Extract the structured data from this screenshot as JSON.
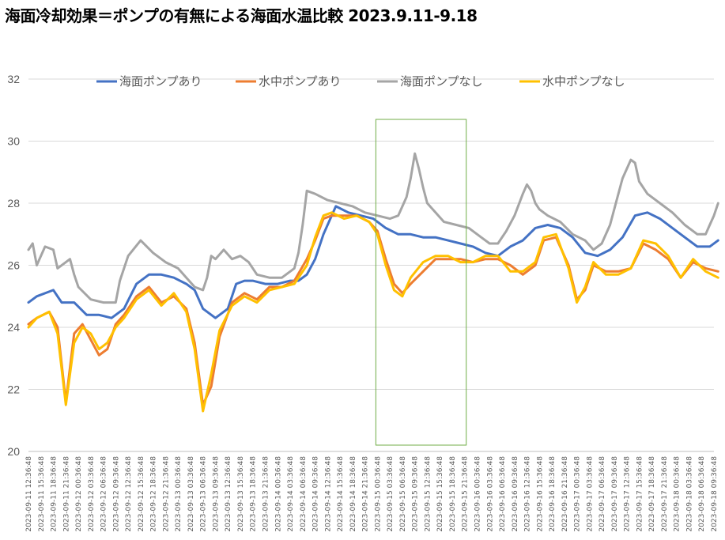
{
  "title": "海面冷却効果＝ポンプの有無による海面水温比較  2023.9.11-9.18",
  "chart_data": {
    "type": "line",
    "title": "海面冷却効果＝ポンプの有無による海面水温比較  2023.9.11-9.18",
    "xlabel": "",
    "ylabel": "",
    "ylim": [
      20,
      32
    ],
    "yticks": [
      20,
      22,
      24,
      26,
      28,
      30,
      32
    ],
    "grid": true,
    "legend_position": "top",
    "highlight_box": {
      "x_from": "2023-09-15 00:36:48",
      "x_to": "2023-09-15 21:36:48",
      "color": "#70ad47"
    },
    "x_tick_labels": [
      "2023-09-11 12:36:48",
      "2023-09-11 15:36:48",
      "2023-09-11 18:36:48",
      "2023-09-11 21:36:48",
      "2023-09-12 00:36:48",
      "2023-09-12 03:36:48",
      "2023-09-12 06:36:48",
      "2023-09-12 09:36:48",
      "2023-09-12 12:36:48",
      "2023-09-12 15:36:48",
      "2023-09-12 18:36:48",
      "2023-09-12 21:36:48",
      "2023-09-13 00:36:48",
      "2023-09-13 03:36:48",
      "2023-09-13 06:36:48",
      "2023-09-13 09:36:48",
      "2023-09-13 12:36:48",
      "2023-09-13 15:36:48",
      "2023-09-13 18:36:48",
      "2023-09-13 21:36:48",
      "2023-09-14 00:36:48",
      "2023-09-14 03:36:48",
      "2023-09-14 06:36:48",
      "2023-09-14 09:36:48",
      "2023-09-14 12:36:48",
      "2023-09-14 15:36:48",
      "2023-09-14 18:36:48",
      "2023-09-14 21:36:48",
      "2023-09-15 00:36:48",
      "2023-09-15 03:36:48",
      "2023-09-15 06:36:48",
      "2023-09-15 09:36:48",
      "2023-09-15 12:36:48",
      "2023-09-15 15:36:48",
      "2023-09-15 18:36:48",
      "2023-09-15 21:36:48",
      "2023-09-16 00:36:48",
      "2023-09-16 03:36:48",
      "2023-09-16 06:36:48",
      "2023-09-16 09:36:48",
      "2023-09-16 12:36:48",
      "2023-09-16 15:36:48",
      "2023-09-16 18:36:48",
      "2023-09-16 21:36:48",
      "2023-09-17 00:36:48",
      "2023-09-17 03:36:48",
      "2023-09-17 06:36:48",
      "2023-09-17 09:36:48",
      "2023-09-17 12:36:48",
      "2023-09-17 15:36:48",
      "2023-09-17 18:36:48",
      "2023-09-17 21:36:48",
      "2023-09-18 00:36:48",
      "2023-09-18 03:36:48",
      "2023-09-18 06:36:48",
      "2023-09-18 09:36:48"
    ],
    "series": [
      {
        "name": "海面ポンプあり",
        "color": "#4472c4",
        "x": [
          "2023-09-11 12:36:48",
          "2023-09-11 14:36:48",
          "2023-09-11 18:36:48",
          "2023-09-11 20:36:48",
          "2023-09-11 23:36:48",
          "2023-09-12 02:36:48",
          "2023-09-12 05:36:48",
          "2023-09-12 08:36:48",
          "2023-09-12 11:36:48",
          "2023-09-12 14:36:48",
          "2023-09-12 17:36:48",
          "2023-09-12 20:36:48",
          "2023-09-12 23:36:48",
          "2023-09-13 02:36:48",
          "2023-09-13 04:36:48",
          "2023-09-13 06:36:48",
          "2023-09-13 09:36:48",
          "2023-09-13 12:36:48",
          "2023-09-13 14:36:48",
          "2023-09-13 16:36:48",
          "2023-09-13 18:36:48",
          "2023-09-13 21:36:48",
          "2023-09-14 00:36:48",
          "2023-09-14 03:36:48",
          "2023-09-14 05:36:48",
          "2023-09-14 07:36:48",
          "2023-09-14 09:36:48",
          "2023-09-14 11:36:48",
          "2023-09-14 14:36:48",
          "2023-09-14 17:36:48",
          "2023-09-14 20:36:48",
          "2023-09-14 23:36:48",
          "2023-09-15 02:36:48",
          "2023-09-15 05:36:48",
          "2023-09-15 08:36:48",
          "2023-09-15 11:36:48",
          "2023-09-15 14:36:48",
          "2023-09-15 17:36:48",
          "2023-09-15 20:36:48",
          "2023-09-15 23:36:48",
          "2023-09-16 02:36:48",
          "2023-09-16 05:36:48",
          "2023-09-16 08:36:48",
          "2023-09-16 11:36:48",
          "2023-09-16 14:36:48",
          "2023-09-16 17:36:48",
          "2023-09-16 20:36:48",
          "2023-09-16 23:36:48",
          "2023-09-17 02:36:48",
          "2023-09-17 05:36:48",
          "2023-09-17 08:36:48",
          "2023-09-17 11:36:48",
          "2023-09-17 14:36:48",
          "2023-09-17 17:36:48",
          "2023-09-17 20:36:48",
          "2023-09-17 23:36:48",
          "2023-09-18 02:36:48",
          "2023-09-18 05:36:48",
          "2023-09-18 08:36:48",
          "2023-09-18 10:36:48"
        ],
        "values": [
          24.8,
          25.0,
          25.2,
          24.8,
          24.8,
          24.4,
          24.4,
          24.3,
          24.6,
          25.4,
          25.7,
          25.7,
          25.6,
          25.4,
          25.2,
          24.6,
          24.3,
          24.6,
          25.4,
          25.5,
          25.5,
          25.4,
          25.4,
          25.5,
          25.5,
          25.7,
          26.2,
          27.0,
          27.9,
          27.7,
          27.6,
          27.5,
          27.2,
          27.0,
          27.0,
          26.9,
          26.9,
          26.8,
          26.7,
          26.6,
          26.4,
          26.3,
          26.6,
          26.8,
          27.2,
          27.3,
          27.2,
          26.9,
          26.4,
          26.3,
          26.5,
          26.9,
          27.6,
          27.7,
          27.5,
          27.2,
          26.9,
          26.6,
          26.6,
          26.8
        ]
      },
      {
        "name": "水中ポンプあり",
        "color": "#ed7d31",
        "x": [
          "2023-09-11 12:36:48",
          "2023-09-11 14:36:48",
          "2023-09-11 17:36:48",
          "2023-09-11 19:36:48",
          "2023-09-11 21:36:48",
          "2023-09-11 23:36:48",
          "2023-09-12 01:36:48",
          "2023-09-12 03:36:48",
          "2023-09-12 05:36:48",
          "2023-09-12 07:36:48",
          "2023-09-12 09:36:48",
          "2023-09-12 11:36:48",
          "2023-09-12 14:36:48",
          "2023-09-12 17:36:48",
          "2023-09-12 20:36:48",
          "2023-09-12 23:36:48",
          "2023-09-13 02:36:48",
          "2023-09-13 04:36:48",
          "2023-09-13 06:36:48",
          "2023-09-13 08:36:48",
          "2023-09-13 10:36:48",
          "2023-09-13 13:36:48",
          "2023-09-13 16:36:48",
          "2023-09-13 19:36:48",
          "2023-09-13 22:36:48",
          "2023-09-14 01:36:48",
          "2023-09-14 04:36:48",
          "2023-09-14 07:36:48",
          "2023-09-14 09:36:48",
          "2023-09-14 11:36:48",
          "2023-09-14 13:36:48",
          "2023-09-14 16:36:48",
          "2023-09-14 19:36:48",
          "2023-09-14 22:36:48",
          "2023-09-15 00:36:48",
          "2023-09-15 02:36:48",
          "2023-09-15 04:36:48",
          "2023-09-15 06:36:48",
          "2023-09-15 08:36:48",
          "2023-09-15 11:36:48",
          "2023-09-15 14:36:48",
          "2023-09-15 17:36:48",
          "2023-09-15 20:36:48",
          "2023-09-15 23:36:48",
          "2023-09-16 02:36:48",
          "2023-09-16 05:36:48",
          "2023-09-16 08:36:48",
          "2023-09-16 11:36:48",
          "2023-09-16 14:36:48",
          "2023-09-16 16:36:48",
          "2023-09-16 19:36:48",
          "2023-09-16 22:36:48",
          "2023-09-17 00:36:48",
          "2023-09-17 02:36:48",
          "2023-09-17 04:36:48",
          "2023-09-17 07:36:48",
          "2023-09-17 10:36:48",
          "2023-09-17 13:36:48",
          "2023-09-17 16:36:48",
          "2023-09-17 19:36:48",
          "2023-09-17 22:36:48",
          "2023-09-18 01:36:48",
          "2023-09-18 04:36:48",
          "2023-09-18 07:36:48",
          "2023-09-18 10:36:48"
        ],
        "values": [
          24.1,
          24.3,
          24.5,
          24.0,
          21.6,
          23.8,
          24.1,
          23.6,
          23.1,
          23.3,
          24.1,
          24.4,
          25.0,
          25.3,
          24.8,
          25.0,
          24.6,
          23.5,
          21.5,
          22.1,
          23.7,
          24.8,
          25.1,
          24.9,
          25.3,
          25.3,
          25.5,
          26.2,
          26.8,
          27.5,
          27.6,
          27.6,
          27.6,
          27.4,
          27.1,
          26.2,
          25.4,
          25.1,
          25.4,
          25.8,
          26.2,
          26.2,
          26.2,
          26.1,
          26.2,
          26.2,
          26.0,
          25.7,
          26.0,
          26.8,
          26.9,
          26.0,
          24.9,
          25.2,
          26.0,
          25.8,
          25.8,
          25.9,
          26.7,
          26.5,
          26.2,
          25.6,
          26.1,
          25.9,
          25.8
        ]
      },
      {
        "name": "海面ポンプなし",
        "color": "#a5a5a5",
        "x": [
          "2023-09-11 12:36:48",
          "2023-09-11 13:36:48",
          "2023-09-11 14:36:48",
          "2023-09-11 16:36:48",
          "2023-09-11 18:36:48",
          "2023-09-11 19:36:48",
          "2023-09-11 22:36:48",
          "2023-09-11 23:36:48",
          "2023-09-12 00:36:48",
          "2023-09-12 03:36:48",
          "2023-09-12 06:36:48",
          "2023-09-12 09:36:48",
          "2023-09-12 10:36:48",
          "2023-09-12 12:36:48",
          "2023-09-12 15:36:48",
          "2023-09-12 18:36:48",
          "2023-09-12 21:36:48",
          "2023-09-13 00:36:48",
          "2023-09-13 02:36:48",
          "2023-09-13 04:36:48",
          "2023-09-13 06:36:48",
          "2023-09-13 07:36:48",
          "2023-09-13 08:36:48",
          "2023-09-13 09:36:48",
          "2023-09-13 11:36:48",
          "2023-09-13 13:36:48",
          "2023-09-13 15:36:48",
          "2023-09-13 17:36:48",
          "2023-09-13 19:36:48",
          "2023-09-13 22:36:48",
          "2023-09-14 01:36:48",
          "2023-09-14 04:36:48",
          "2023-09-14 05:36:48",
          "2023-09-14 06:36:48",
          "2023-09-14 07:36:48",
          "2023-09-14 09:36:48",
          "2023-09-14 12:36:48",
          "2023-09-14 15:36:48",
          "2023-09-14 18:36:48",
          "2023-09-14 21:36:48",
          "2023-09-15 00:36:48",
          "2023-09-15 03:36:48",
          "2023-09-15 05:36:48",
          "2023-09-15 07:36:48",
          "2023-09-15 08:36:48",
          "2023-09-15 09:36:48",
          "2023-09-15 10:36:48",
          "2023-09-15 11:36:48",
          "2023-09-15 12:36:48",
          "2023-09-15 14:36:48",
          "2023-09-15 16:36:48",
          "2023-09-15 19:36:48",
          "2023-09-15 22:36:48",
          "2023-09-16 01:36:48",
          "2023-09-16 03:36:48",
          "2023-09-16 05:36:48",
          "2023-09-16 07:36:48",
          "2023-09-16 09:36:48",
          "2023-09-16 11:36:48",
          "2023-09-16 12:36:48",
          "2023-09-16 13:36:48",
          "2023-09-16 14:36:48",
          "2023-09-16 15:36:48",
          "2023-09-16 17:36:48",
          "2023-09-16 20:36:48",
          "2023-09-16 23:36:48",
          "2023-09-17 02:36:48",
          "2023-09-17 04:36:48",
          "2023-09-17 06:36:48",
          "2023-09-17 08:36:48",
          "2023-09-17 10:36:48",
          "2023-09-17 11:36:48",
          "2023-09-17 13:36:48",
          "2023-09-17 14:36:48",
          "2023-09-17 15:36:48",
          "2023-09-17 17:36:48",
          "2023-09-17 20:36:48",
          "2023-09-17 23:36:48",
          "2023-09-18 02:36:48",
          "2023-09-18 05:36:48",
          "2023-09-18 07:36:48",
          "2023-09-18 08:36:48",
          "2023-09-18 09:36:48",
          "2023-09-18 10:36:48"
        ],
        "values": [
          26.5,
          26.7,
          26.0,
          26.6,
          26.5,
          25.9,
          26.2,
          25.7,
          25.3,
          24.9,
          24.8,
          24.8,
          25.5,
          26.3,
          26.8,
          26.4,
          26.1,
          25.9,
          25.6,
          25.3,
          25.2,
          25.6,
          26.3,
          26.2,
          26.5,
          26.2,
          26.3,
          26.1,
          25.7,
          25.6,
          25.6,
          25.9,
          26.4,
          27.3,
          28.4,
          28.3,
          28.1,
          28.0,
          27.9,
          27.7,
          27.6,
          27.5,
          27.6,
          28.2,
          28.8,
          29.6,
          29.1,
          28.5,
          28.0,
          27.7,
          27.4,
          27.3,
          27.2,
          26.9,
          26.7,
          26.7,
          27.1,
          27.6,
          28.3,
          28.6,
          28.4,
          28.0,
          27.8,
          27.6,
          27.4,
          27.0,
          26.8,
          26.5,
          26.7,
          27.3,
          28.3,
          28.8,
          29.4,
          29.3,
          28.7,
          28.3,
          28.0,
          27.7,
          27.3,
          27.0,
          27.0,
          27.3,
          27.6,
          28.0
        ]
      },
      {
        "name": "水中ポンプなし",
        "color": "#ffc000",
        "x": [
          "2023-09-11 12:36:48",
          "2023-09-11 14:36:48",
          "2023-09-11 17:36:48",
          "2023-09-11 19:36:48",
          "2023-09-11 21:36:48",
          "2023-09-11 23:36:48",
          "2023-09-12 01:36:48",
          "2023-09-12 03:36:48",
          "2023-09-12 05:36:48",
          "2023-09-12 07:36:48",
          "2023-09-12 09:36:48",
          "2023-09-12 11:36:48",
          "2023-09-12 14:36:48",
          "2023-09-12 17:36:48",
          "2023-09-12 20:36:48",
          "2023-09-12 23:36:48",
          "2023-09-13 02:36:48",
          "2023-09-13 04:36:48",
          "2023-09-13 06:36:48",
          "2023-09-13 08:36:48",
          "2023-09-13 10:36:48",
          "2023-09-13 13:36:48",
          "2023-09-13 16:36:48",
          "2023-09-13 19:36:48",
          "2023-09-13 22:36:48",
          "2023-09-14 01:36:48",
          "2023-09-14 04:36:48",
          "2023-09-14 07:36:48",
          "2023-09-14 09:36:48",
          "2023-09-14 11:36:48",
          "2023-09-14 13:36:48",
          "2023-09-14 16:36:48",
          "2023-09-14 19:36:48",
          "2023-09-14 22:36:48",
          "2023-09-15 00:36:48",
          "2023-09-15 02:36:48",
          "2023-09-15 04:36:48",
          "2023-09-15 06:36:48",
          "2023-09-15 08:36:48",
          "2023-09-15 11:36:48",
          "2023-09-15 14:36:48",
          "2023-09-15 17:36:48",
          "2023-09-15 20:36:48",
          "2023-09-15 23:36:48",
          "2023-09-16 02:36:48",
          "2023-09-16 05:36:48",
          "2023-09-16 08:36:48",
          "2023-09-16 11:36:48",
          "2023-09-16 14:36:48",
          "2023-09-16 16:36:48",
          "2023-09-16 19:36:48",
          "2023-09-16 22:36:48",
          "2023-09-17 00:36:48",
          "2023-09-17 02:36:48",
          "2023-09-17 04:36:48",
          "2023-09-17 07:36:48",
          "2023-09-17 10:36:48",
          "2023-09-17 13:36:48",
          "2023-09-17 16:36:48",
          "2023-09-17 19:36:48",
          "2023-09-17 22:36:48",
          "2023-09-18 01:36:48",
          "2023-09-18 04:36:48",
          "2023-09-18 07:36:48",
          "2023-09-18 10:36:48"
        ],
        "values": [
          24.0,
          24.3,
          24.5,
          23.8,
          21.5,
          23.5,
          24.0,
          23.8,
          23.3,
          23.5,
          24.0,
          24.3,
          24.9,
          25.2,
          24.7,
          25.1,
          24.5,
          23.3,
          21.3,
          22.5,
          23.9,
          24.7,
          25.0,
          24.8,
          25.2,
          25.3,
          25.4,
          26.0,
          26.9,
          27.6,
          27.7,
          27.5,
          27.6,
          27.4,
          27.0,
          26.0,
          25.2,
          25.0,
          25.6,
          26.1,
          26.3,
          26.3,
          26.1,
          26.1,
          26.3,
          26.3,
          25.8,
          25.8,
          26.1,
          26.9,
          27.0,
          25.9,
          24.8,
          25.3,
          26.1,
          25.7,
          25.7,
          25.9,
          26.8,
          26.7,
          26.3,
          25.6,
          26.2,
          25.8,
          25.6
        ]
      }
    ]
  }
}
